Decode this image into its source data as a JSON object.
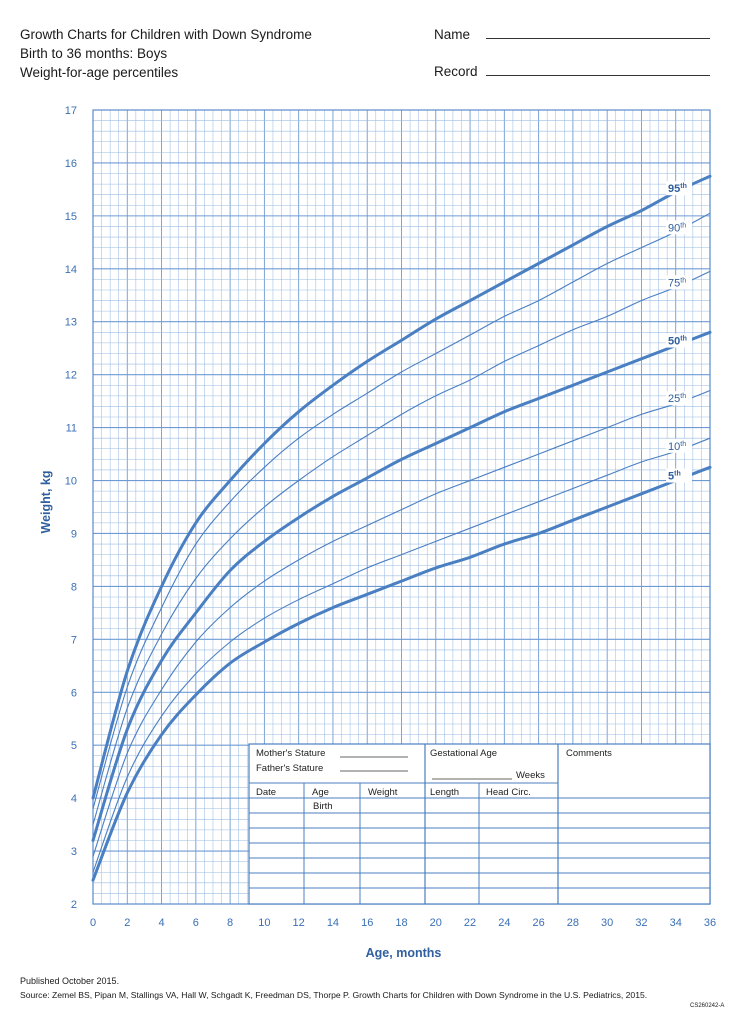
{
  "header": {
    "title_line1": "Growth Charts for Children with Down Syndrome",
    "title_line2": "Birth to 36 months: Boys",
    "title_line3": "Weight-for-age percentiles",
    "name_label": "Name",
    "record_label": "Record"
  },
  "chart_data": {
    "type": "line",
    "xlabel": "Age, months",
    "ylabel": "Weight, kg",
    "xlim": [
      0,
      36
    ],
    "ylim": [
      2,
      17
    ],
    "x_ticks": [
      "0",
      "2",
      "4",
      "6",
      "8",
      "10",
      "12",
      "14",
      "16",
      "18",
      "20",
      "22",
      "24",
      "26",
      "28",
      "30",
      "32",
      "34",
      "36"
    ],
    "y_ticks": [
      "2",
      "3",
      "4",
      "5",
      "6",
      "7",
      "8",
      "9",
      "10",
      "11",
      "12",
      "13",
      "14",
      "15",
      "16",
      "17"
    ],
    "grid": true,
    "line_color": "#4a7fc1",
    "grid_color": "#9dbde3",
    "x": [
      0,
      2,
      4,
      6,
      8,
      10,
      12,
      14,
      16,
      18,
      20,
      22,
      24,
      26,
      28,
      30,
      32,
      34,
      36
    ],
    "series": [
      {
        "name": "95",
        "bold": true,
        "values": [
          4.0,
          6.4,
          8.0,
          9.2,
          10.0,
          10.7,
          11.3,
          11.8,
          12.25,
          12.65,
          13.05,
          13.4,
          13.75,
          14.1,
          14.45,
          14.8,
          15.1,
          15.45,
          15.75
        ]
      },
      {
        "name": "90",
        "bold": false,
        "values": [
          3.8,
          6.1,
          7.6,
          8.8,
          9.6,
          10.25,
          10.8,
          11.25,
          11.65,
          12.05,
          12.4,
          12.75,
          13.1,
          13.4,
          13.75,
          14.1,
          14.4,
          14.7,
          15.05
        ]
      },
      {
        "name": "75",
        "bold": false,
        "values": [
          3.5,
          5.7,
          7.1,
          8.15,
          8.9,
          9.5,
          10.0,
          10.45,
          10.85,
          11.25,
          11.6,
          11.9,
          12.25,
          12.55,
          12.85,
          13.1,
          13.4,
          13.65,
          13.95
        ]
      },
      {
        "name": "50",
        "bold": true,
        "values": [
          3.2,
          5.3,
          6.6,
          7.5,
          8.3,
          8.85,
          9.3,
          9.7,
          10.05,
          10.4,
          10.7,
          11.0,
          11.3,
          11.55,
          11.8,
          12.05,
          12.3,
          12.55,
          12.8
        ]
      },
      {
        "name": "25",
        "bold": false,
        "values": [
          2.9,
          4.85,
          6.05,
          6.95,
          7.6,
          8.1,
          8.5,
          8.85,
          9.15,
          9.45,
          9.75,
          10.0,
          10.25,
          10.5,
          10.75,
          11.0,
          11.25,
          11.45,
          11.7
        ]
      },
      {
        "name": "10",
        "bold": false,
        "values": [
          2.6,
          4.4,
          5.55,
          6.35,
          6.95,
          7.4,
          7.75,
          8.05,
          8.35,
          8.6,
          8.85,
          9.1,
          9.35,
          9.6,
          9.85,
          10.1,
          10.35,
          10.55,
          10.8
        ]
      },
      {
        "name": "5",
        "bold": true,
        "values": [
          2.45,
          4.1,
          5.2,
          5.95,
          6.55,
          6.95,
          7.3,
          7.6,
          7.85,
          8.1,
          8.35,
          8.55,
          8.8,
          9.0,
          9.25,
          9.5,
          9.75,
          10.0,
          10.25
        ]
      }
    ],
    "percentile_suffix": "th",
    "form": {
      "mothers_stature": "Mother's Stature",
      "fathers_stature": "Father's Stature",
      "gestational_age": "Gestational Age",
      "weeks": "Weeks",
      "comments": "Comments",
      "col_date": "Date",
      "col_age": "Age",
      "col_weight": "Weight",
      "col_length": "Length",
      "col_head": "Head Circ.",
      "birth": "Birth"
    }
  },
  "footer": {
    "published": "Published October 2015.",
    "source": "Source: Zemel BS, Pipan M, Stallings VA, Hall W, Schgadt K, Freedman DS, Thorpe P. Growth Charts for Children with Down Syndrome in the U.S. Pediatrics, 2015.",
    "code": "CS260242-A"
  }
}
